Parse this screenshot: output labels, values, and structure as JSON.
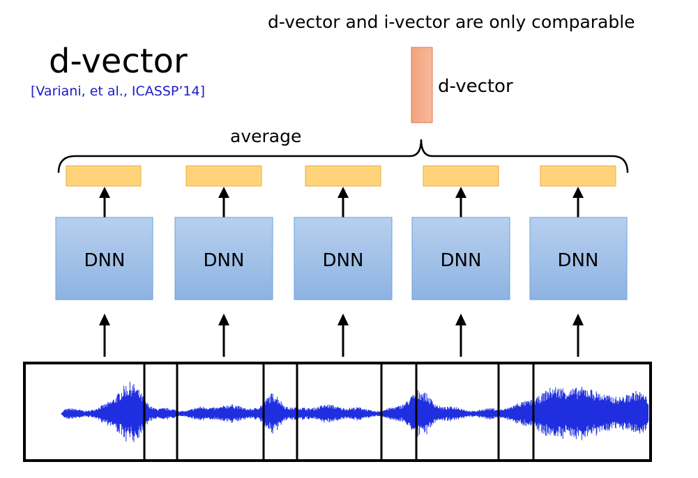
{
  "slide": {
    "title": "d-vector",
    "citation": "[Variani, et al., ICASSP’14]",
    "note": "d-vector and i-vector are only comparable",
    "output_label": "d-vector",
    "brace_label": "average"
  },
  "dnn": {
    "label": "DNN",
    "count": 5
  },
  "colors": {
    "dnn_fill_top": "#b7d0ee",
    "dnn_fill_bottom": "#8db3e2",
    "dnn_border": "#6f9fd8",
    "feature_fill": "#ffd37a",
    "feature_border": "#f2a93b",
    "dvector_fill": "#f4a37f",
    "dvector_border": "#e0734b",
    "waveform": "#1f2fe0",
    "citation": "#1a1acc",
    "black": "#000000"
  }
}
